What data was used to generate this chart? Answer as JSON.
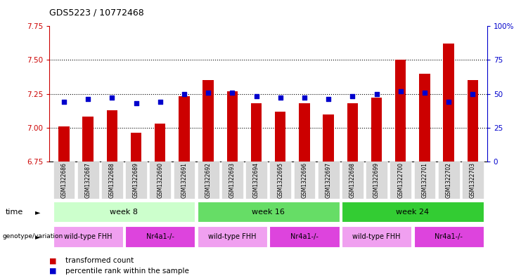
{
  "title": "GDS5223 / 10772468",
  "samples": [
    "GSM1322686",
    "GSM1322687",
    "GSM1322688",
    "GSM1322689",
    "GSM1322690",
    "GSM1322691",
    "GSM1322692",
    "GSM1322693",
    "GSM1322694",
    "GSM1322695",
    "GSM1322696",
    "GSM1322697",
    "GSM1322698",
    "GSM1322699",
    "GSM1322700",
    "GSM1322701",
    "GSM1322702",
    "GSM1322703"
  ],
  "transformed_count": [
    7.01,
    7.08,
    7.13,
    6.96,
    7.03,
    7.23,
    7.35,
    7.27,
    7.18,
    7.12,
    7.18,
    7.1,
    7.18,
    7.22,
    7.5,
    7.4,
    7.62,
    7.35
  ],
  "percentile_rank": [
    44,
    46,
    47,
    43,
    44,
    50,
    51,
    51,
    48,
    47,
    47,
    46,
    48,
    50,
    52,
    51,
    44,
    50
  ],
  "ylim_left": [
    6.75,
    7.75
  ],
  "ylim_right": [
    0,
    100
  ],
  "yticks_left": [
    6.75,
    7.0,
    7.25,
    7.5,
    7.75
  ],
  "yticks_right": [
    0,
    25,
    50,
    75,
    100
  ],
  "ytick_labels_right": [
    "0",
    "25",
    "50",
    "75",
    "100%"
  ],
  "bar_color": "#cc0000",
  "dot_color": "#0000cc",
  "time_groups": [
    {
      "label": "week 8",
      "start": 0,
      "end": 5,
      "color": "#ccffcc"
    },
    {
      "label": "week 16",
      "start": 6,
      "end": 11,
      "color": "#66dd66"
    },
    {
      "label": "week 24",
      "start": 12,
      "end": 17,
      "color": "#33cc33"
    }
  ],
  "genotype_groups": [
    {
      "label": "wild-type FHH",
      "start": 0,
      "end": 2,
      "color": "#f0a0f0"
    },
    {
      "label": "Nr4a1-/-",
      "start": 3,
      "end": 5,
      "color": "#dd44dd"
    },
    {
      "label": "wild-type FHH",
      "start": 6,
      "end": 8,
      "color": "#f0a0f0"
    },
    {
      "label": "Nr4a1-/-",
      "start": 9,
      "end": 11,
      "color": "#dd44dd"
    },
    {
      "label": "wild-type FHH",
      "start": 12,
      "end": 14,
      "color": "#f0a0f0"
    },
    {
      "label": "Nr4a1-/-",
      "start": 15,
      "end": 17,
      "color": "#dd44dd"
    }
  ],
  "plot_bg_color": "#ffffff",
  "left_axis_color": "#cc0000",
  "right_axis_color": "#0000cc",
  "grid_yticks": [
    7.0,
    7.25,
    7.5
  ]
}
